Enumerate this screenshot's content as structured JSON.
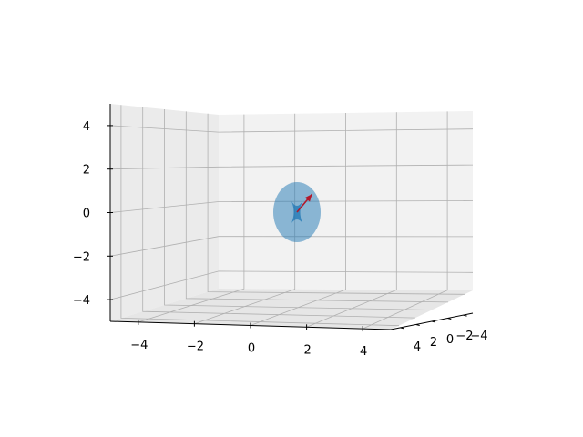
{
  "chart_data": {
    "type": "surface3d",
    "title": "",
    "xlabel": "",
    "ylabel": "",
    "zlabel": "",
    "xlim": [
      -5,
      5
    ],
    "ylim": [
      -5,
      5
    ],
    "zlim": [
      -5,
      5
    ],
    "grid": true,
    "x_ticks": [
      {
        "value": -4,
        "label": "−4"
      },
      {
        "value": -2,
        "label": "−2"
      },
      {
        "value": 0,
        "label": "0"
      },
      {
        "value": 2,
        "label": "2"
      },
      {
        "value": 4,
        "label": "4"
      }
    ],
    "y_ticks": [
      {
        "value": 4,
        "label": "4"
      },
      {
        "value": 2,
        "label": "2"
      },
      {
        "value": 0,
        "label": "0"
      },
      {
        "value": -2,
        "label": "−2"
      },
      {
        "value": -4,
        "label": "−4"
      }
    ],
    "z_ticks": [
      {
        "value": 4,
        "label": "4"
      },
      {
        "value": 2,
        "label": "2"
      },
      {
        "value": 0,
        "label": "0"
      },
      {
        "value": -2,
        "label": "−2"
      },
      {
        "value": -4,
        "label": "−4"
      }
    ],
    "surface": {
      "shape": "ellipsoid",
      "center": [
        0,
        0,
        0
      ],
      "radii": [
        1,
        1,
        1.4
      ],
      "color": "#1f77b4",
      "alpha": 0.5
    },
    "vector": {
      "start": [
        0,
        0,
        0
      ],
      "end": [
        0.75,
        0,
        0.9
      ],
      "color": "#b2182b"
    },
    "colors": {
      "pane_back": "#f2f2f2",
      "pane_side": "#ebebeb",
      "pane_floor": "#e6e6e6",
      "grid": "#b0b0b0"
    }
  }
}
